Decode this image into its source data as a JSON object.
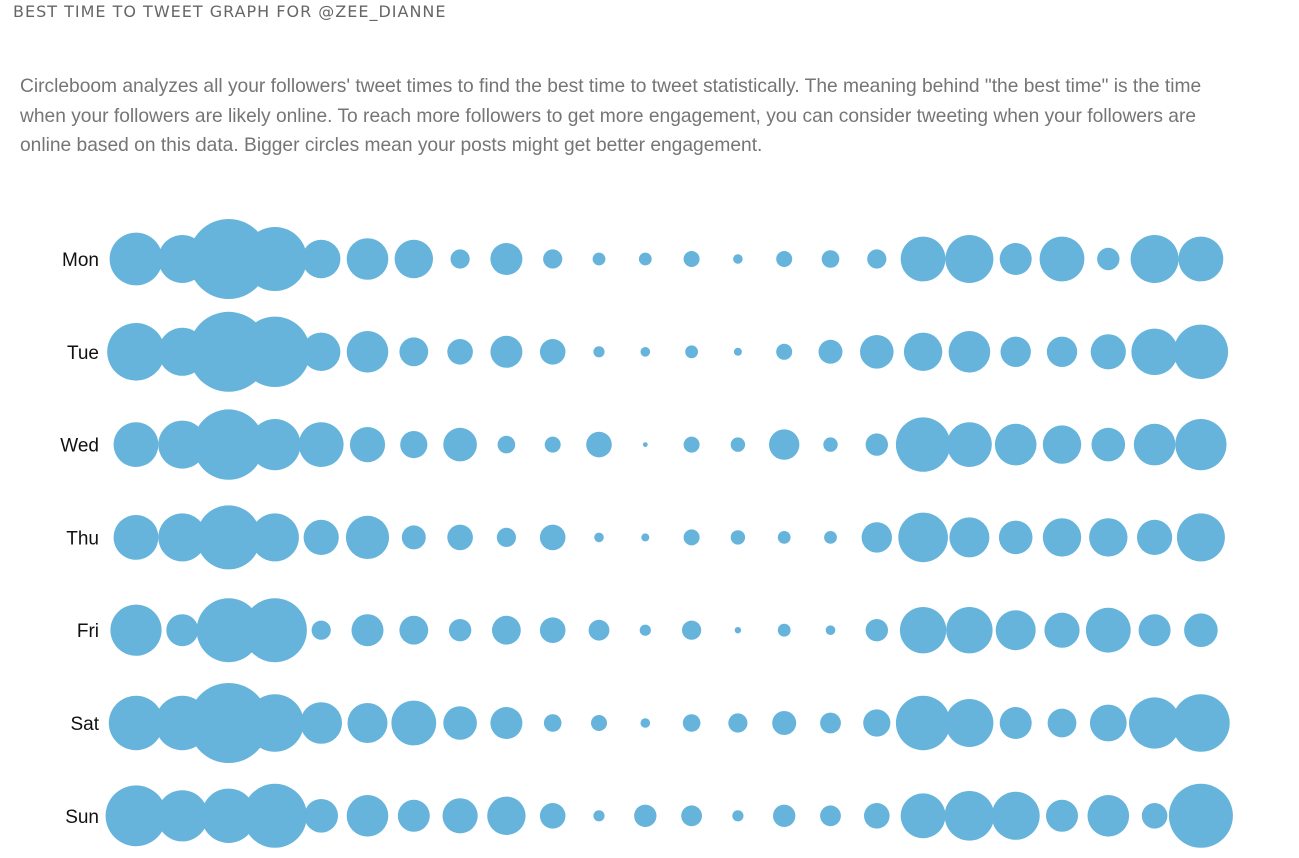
{
  "header": {
    "title": "BEST TIME TO TWEET GRAPH FOR @ZEE_DIANNE"
  },
  "description": "Circleboom analyzes all your followers' tweet times to find the best time to tweet statistically. The meaning behind \"the best time\" is the time when your followers are likely online. To reach more followers to get more engagement, you can consider tweeting when your followers are online based on this data. Bigger circles mean your posts might get better engagement.",
  "chart_data": {
    "type": "bubble-grid",
    "rows": [
      "Mon",
      "Tue",
      "Wed",
      "Thu",
      "Fri",
      "Sat",
      "Sun"
    ],
    "columns": 24,
    "color": "#66b4db",
    "value_scale": "relative circle size (0-100)",
    "values": [
      [
        33,
        30,
        50,
        40,
        24,
        26,
        24,
        12,
        20,
        12,
        8,
        8,
        10,
        6,
        10,
        11,
        12,
        28,
        30,
        20,
        28,
        14,
        30,
        28
      ],
      [
        36,
        30,
        50,
        44,
        24,
        26,
        18,
        16,
        20,
        16,
        7,
        6,
        8,
        5,
        10,
        15,
        21,
        24,
        26,
        19,
        19,
        22,
        29,
        34
      ],
      [
        28,
        30,
        44,
        32,
        28,
        22,
        17,
        21,
        11,
        10,
        16,
        3,
        10,
        9,
        19,
        9,
        14,
        34,
        28,
        26,
        24,
        21,
        26,
        32
      ],
      [
        28,
        30,
        40,
        30,
        22,
        27,
        15,
        16,
        12,
        16,
        6,
        5,
        10,
        9,
        8,
        8,
        19,
        31,
        25,
        21,
        24,
        24,
        22,
        30
      ],
      [
        32,
        20,
        40,
        40,
        12,
        20,
        18,
        14,
        18,
        16,
        13,
        7,
        12,
        4,
        8,
        6,
        14,
        29,
        29,
        25,
        22,
        28,
        20,
        21
      ],
      [
        34,
        34,
        50,
        36,
        26,
        25,
        28,
        21,
        20,
        11,
        10,
        6,
        11,
        12,
        15,
        13,
        17,
        34,
        30,
        20,
        18,
        23,
        32,
        36
      ],
      [
        38,
        32,
        34,
        40,
        21,
        26,
        20,
        22,
        24,
        16,
        7,
        14,
        13,
        7,
        14,
        13,
        16,
        28,
        31,
        30,
        20,
        26,
        16,
        40
      ]
    ]
  }
}
